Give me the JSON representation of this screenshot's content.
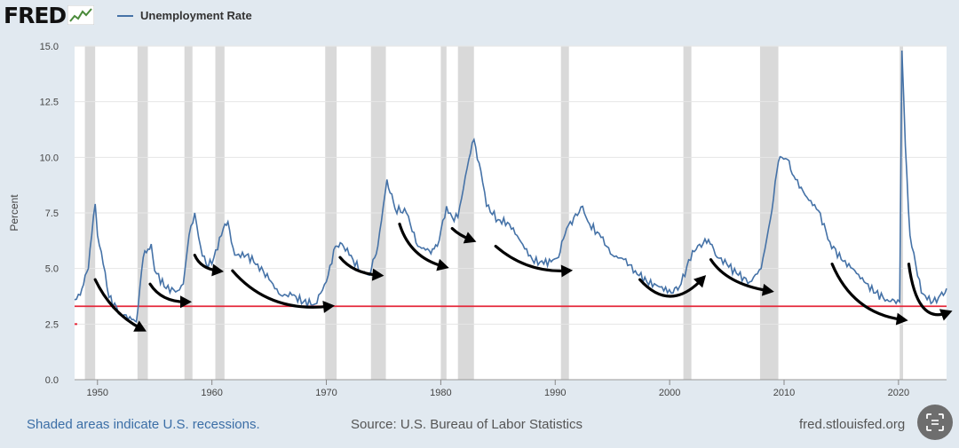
{
  "header": {
    "logo_text": "FRED",
    "legend_label": "Unemployment Rate"
  },
  "footer": {
    "note": "Shaded areas indicate U.S. recessions.",
    "source": "Source: U.S. Bureau of Labor Statistics",
    "url": "fred.stlouisfed.org"
  },
  "colors": {
    "series": "#4572a7",
    "reference_line": "#e5293b",
    "recession": "#d9d9d9",
    "arrow": "#000000"
  },
  "icons": {
    "scan": "scan-icon",
    "logo_graph": "line-graph-icon"
  },
  "chart_data": {
    "type": "line",
    "title": "Unemployment Rate",
    "xlabel": "",
    "ylabel": "Percent",
    "xlim": [
      1948,
      2024.2
    ],
    "ylim": [
      0,
      15
    ],
    "yticks": [
      "0.0",
      "2.5",
      "5.0",
      "7.5",
      "10.0",
      "12.5",
      "15.0"
    ],
    "xticks": [
      "1950",
      "1960",
      "1970",
      "1980",
      "1990",
      "2000",
      "2010",
      "2020"
    ],
    "reference_line": 3.3,
    "recessions": [
      [
        1948.9,
        1949.8
      ],
      [
        1953.5,
        1954.4
      ],
      [
        1957.6,
        1958.3
      ],
      [
        1960.3,
        1961.1
      ],
      [
        1969.9,
        1970.9
      ],
      [
        1973.9,
        1975.2
      ],
      [
        1980.0,
        1980.5
      ],
      [
        1981.5,
        1982.9
      ],
      [
        1990.5,
        1991.2
      ],
      [
        2001.2,
        2001.9
      ],
      [
        2007.9,
        2009.5
      ],
      [
        2020.1,
        2020.4
      ]
    ],
    "series": [
      {
        "name": "Unemployment Rate",
        "points": [
          [
            1948.0,
            3.6
          ],
          [
            1948.5,
            3.8
          ],
          [
            1949.2,
            5.0
          ],
          [
            1949.5,
            6.5
          ],
          [
            1949.8,
            7.9
          ],
          [
            1950.0,
            6.5
          ],
          [
            1950.5,
            5.2
          ],
          [
            1951.0,
            3.7
          ],
          [
            1952.0,
            3.0
          ],
          [
            1953.0,
            2.7
          ],
          [
            1953.4,
            2.6
          ],
          [
            1954.0,
            5.5
          ],
          [
            1954.7,
            6.1
          ],
          [
            1955.0,
            4.9
          ],
          [
            1956.0,
            4.1
          ],
          [
            1957.0,
            4.0
          ],
          [
            1957.5,
            4.3
          ],
          [
            1958.0,
            6.5
          ],
          [
            1958.5,
            7.5
          ],
          [
            1959.0,
            6.0
          ],
          [
            1959.5,
            5.2
          ],
          [
            1960.0,
            5.2
          ],
          [
            1961.0,
            6.8
          ],
          [
            1961.4,
            7.1
          ],
          [
            1962.0,
            5.6
          ],
          [
            1963.0,
            5.6
          ],
          [
            1964.0,
            5.2
          ],
          [
            1965.0,
            4.5
          ],
          [
            1966.0,
            3.8
          ],
          [
            1967.0,
            3.8
          ],
          [
            1968.0,
            3.5
          ],
          [
            1969.0,
            3.4
          ],
          [
            1970.0,
            4.4
          ],
          [
            1970.8,
            6.0
          ],
          [
            1971.5,
            6.0
          ],
          [
            1972.0,
            5.6
          ],
          [
            1973.0,
            4.9
          ],
          [
            1973.8,
            4.7
          ],
          [
            1974.5,
            6.0
          ],
          [
            1975.3,
            9.0
          ],
          [
            1976.0,
            7.7
          ],
          [
            1977.0,
            7.5
          ],
          [
            1978.0,
            6.0
          ],
          [
            1979.0,
            5.8
          ],
          [
            1979.7,
            6.0
          ],
          [
            1980.5,
            7.8
          ],
          [
            1981.0,
            7.3
          ],
          [
            1981.5,
            7.3
          ],
          [
            1982.3,
            9.5
          ],
          [
            1982.9,
            10.8
          ],
          [
            1983.5,
            9.4
          ],
          [
            1984.0,
            7.8
          ],
          [
            1985.0,
            7.2
          ],
          [
            1986.0,
            7.0
          ],
          [
            1987.0,
            6.2
          ],
          [
            1988.0,
            5.4
          ],
          [
            1989.0,
            5.2
          ],
          [
            1990.3,
            5.5
          ],
          [
            1991.0,
            6.8
          ],
          [
            1992.4,
            7.8
          ],
          [
            1993.0,
            7.0
          ],
          [
            1994.0,
            6.4
          ],
          [
            1995.0,
            5.6
          ],
          [
            1996.0,
            5.4
          ],
          [
            1997.0,
            4.9
          ],
          [
            1998.0,
            4.4
          ],
          [
            1999.0,
            4.2
          ],
          [
            2000.3,
            3.9
          ],
          [
            2001.0,
            4.3
          ],
          [
            2002.0,
            5.8
          ],
          [
            2003.4,
            6.3
          ],
          [
            2004.0,
            5.6
          ],
          [
            2005.0,
            5.2
          ],
          [
            2006.0,
            4.7
          ],
          [
            2007.0,
            4.4
          ],
          [
            2008.0,
            5.0
          ],
          [
            2008.8,
            7.2
          ],
          [
            2009.5,
            9.8
          ],
          [
            2009.8,
            10.0
          ],
          [
            2010.3,
            9.9
          ],
          [
            2011.0,
            9.0
          ],
          [
            2012.0,
            8.2
          ],
          [
            2013.0,
            7.6
          ],
          [
            2014.0,
            6.2
          ],
          [
            2015.0,
            5.4
          ],
          [
            2016.0,
            5.0
          ],
          [
            2017.0,
            4.4
          ],
          [
            2018.0,
            3.9
          ],
          [
            2019.0,
            3.6
          ],
          [
            2020.1,
            3.5
          ],
          [
            2020.3,
            14.8
          ],
          [
            2020.6,
            10.5
          ],
          [
            2021.0,
            6.5
          ],
          [
            2021.5,
            5.2
          ],
          [
            2022.0,
            3.9
          ],
          [
            2022.5,
            3.6
          ],
          [
            2023.0,
            3.5
          ],
          [
            2023.5,
            3.7
          ],
          [
            2024.2,
            4.1
          ]
        ]
      }
    ],
    "annotations": {
      "type": "curved-arrows",
      "arrows": [
        [
          [
            1949.8,
            4.5
          ],
          [
            1951.2,
            3.0
          ],
          [
            1953.8,
            2.3
          ]
        ],
        [
          [
            1954.6,
            4.3
          ],
          [
            1955.6,
            3.5
          ],
          [
            1957.7,
            3.5
          ]
        ],
        [
          [
            1958.5,
            5.6
          ],
          [
            1959.0,
            5.0
          ],
          [
            1960.5,
            4.9
          ]
        ],
        [
          [
            1961.8,
            4.9
          ],
          [
            1965.0,
            3.0
          ],
          [
            1970.2,
            3.3
          ]
        ],
        [
          [
            1971.2,
            5.5
          ],
          [
            1972.3,
            4.8
          ],
          [
            1974.5,
            4.7
          ]
        ],
        [
          [
            1976.4,
            7.0
          ],
          [
            1977.3,
            5.5
          ],
          [
            1980.2,
            5.1
          ]
        ],
        [
          [
            1981.0,
            6.8
          ],
          [
            1981.6,
            6.5
          ],
          [
            1982.6,
            6.3
          ]
        ],
        [
          [
            1984.8,
            6.0
          ],
          [
            1987.5,
            4.8
          ],
          [
            1991.0,
            4.9
          ]
        ],
        [
          [
            1997.4,
            4.5
          ],
          [
            2000.0,
            3.0
          ],
          [
            2002.8,
            4.5
          ]
        ],
        [
          [
            2003.6,
            5.4
          ],
          [
            2005.0,
            4.3
          ],
          [
            2008.6,
            4.0
          ]
        ],
        [
          [
            2014.2,
            5.2
          ],
          [
            2016.0,
            3.0
          ],
          [
            2020.3,
            2.7
          ]
        ],
        [
          [
            2020.9,
            5.2
          ],
          [
            2021.6,
            2.5
          ],
          [
            2024.2,
            3.0
          ]
        ]
      ]
    }
  }
}
